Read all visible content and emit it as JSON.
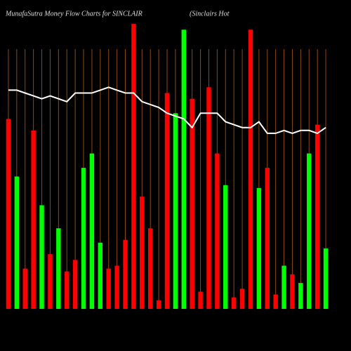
{
  "chart_data": {
    "type": "bar",
    "title": "MunafaSutra  Money Flow  Charts for SINCLAIR",
    "subtitle": "(Sinclairs Hot",
    "categories": [
      null,
      null,
      null,
      null,
      null,
      null,
      null,
      null,
      null,
      null,
      null,
      null,
      null,
      null,
      null,
      null,
      null,
      null,
      null,
      null,
      null,
      null,
      null,
      null,
      null,
      null,
      null,
      null,
      null,
      null,
      null,
      null,
      null,
      null,
      null,
      null,
      null,
      null,
      null
    ],
    "values": [
      66,
      46,
      14,
      62,
      36,
      19,
      28,
      13,
      17,
      49,
      54,
      23,
      14,
      15,
      24,
      99,
      39,
      28,
      3,
      75,
      68,
      97,
      73,
      6,
      77,
      54,
      43,
      4,
      7,
      97,
      42,
      49,
      5,
      15,
      12,
      9,
      54,
      64,
      21
    ],
    "colors": [
      "#ff0000",
      "#00ff00",
      "#ff0000",
      "#ff0000",
      "#00ff00",
      "#ff0000",
      "#00ff00",
      "#ff0000",
      "#ff0000",
      "#00ff00",
      "#00ff00",
      "#00ff00",
      "#ff0000",
      "#ff0000",
      "#ff0000",
      "#ff0000",
      "#ff0000",
      "#ff0000",
      "#ff0000",
      "#ff0000",
      "#00ff00",
      "#00ff00",
      "#ff0000",
      "#ff0000",
      "#ff0000",
      "#ff0000",
      "#00ff00",
      "#ff0000",
      "#ff0000",
      "#ff0000",
      "#00ff00",
      "#ff0000",
      "#ff0000",
      "#00ff00",
      "#ff0000",
      "#00ff00",
      "#00ff00",
      "#ff0000",
      "#00ff00"
    ],
    "line": {
      "color": "#ffffff",
      "values": [
        76,
        76,
        75,
        74,
        73,
        74,
        73,
        72,
        75,
        75,
        75,
        76,
        77,
        76,
        75,
        75,
        72,
        71,
        70,
        68,
        67,
        66,
        63,
        68,
        68,
        68,
        65,
        64,
        63,
        63,
        65,
        61,
        61,
        62,
        61,
        62,
        62,
        61,
        63
      ]
    },
    "ylim": [
      0,
      100
    ],
    "grid": true,
    "grid_color": "#8b4a10"
  }
}
